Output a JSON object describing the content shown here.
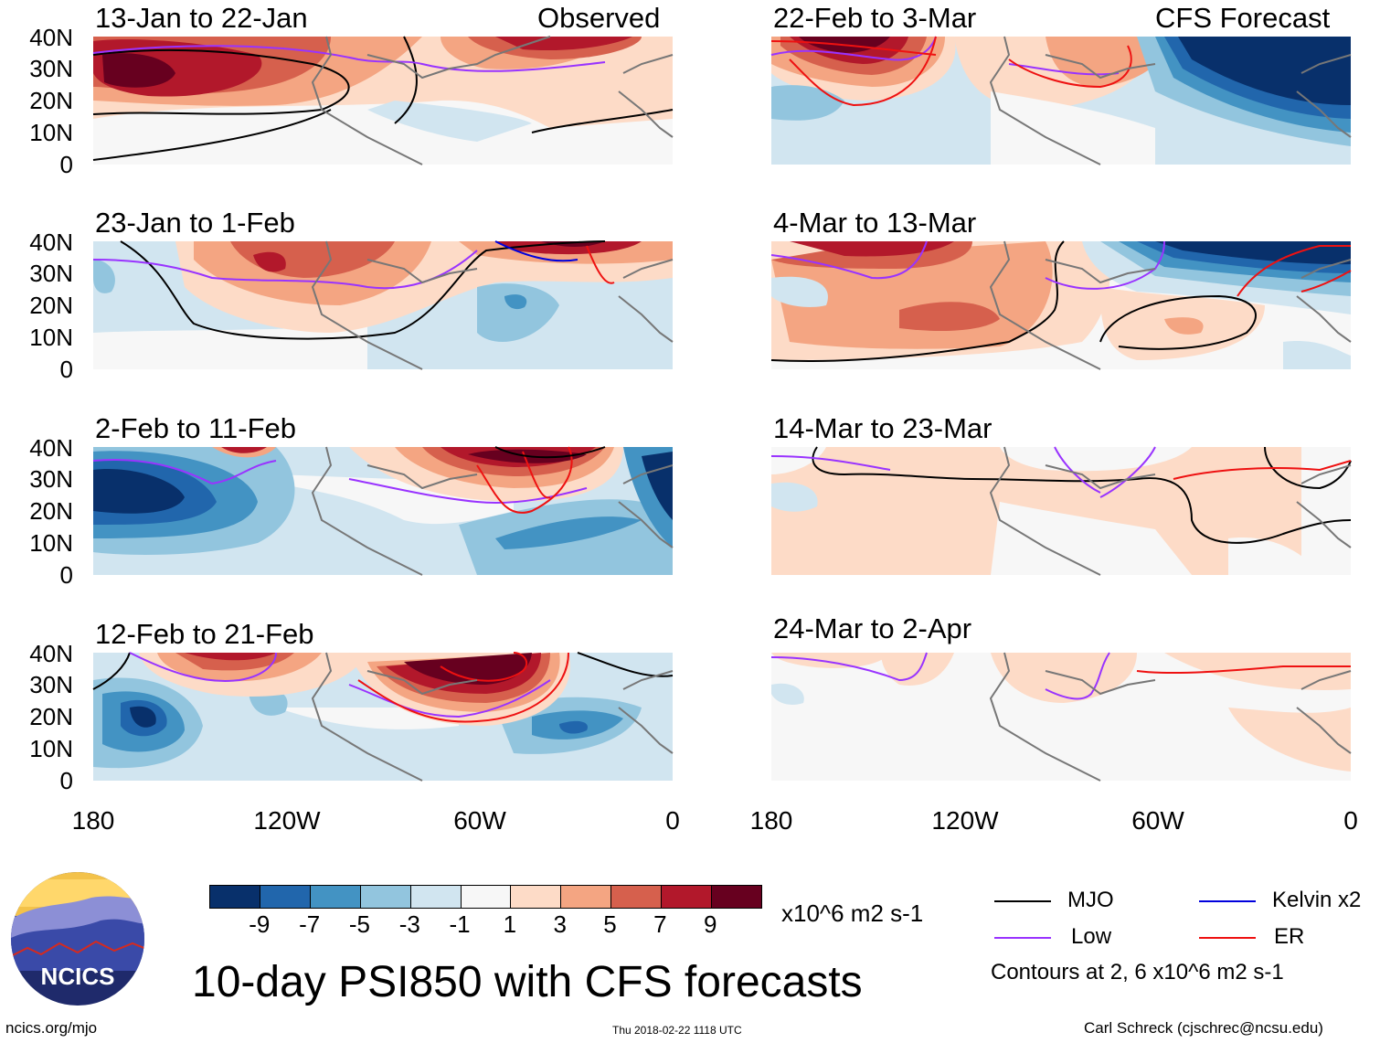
{
  "main_title": "10-day PSI850 with CFS forecasts",
  "left_header": "Observed",
  "right_header": "CFS Forecast",
  "y_ticks": [
    "40N",
    "30N",
    "20N",
    "10N",
    "0"
  ],
  "x_ticks": [
    "180",
    "120W",
    "60W",
    "0"
  ],
  "panels_left": [
    "13-Jan to 22-Jan",
    "23-Jan to 1-Feb",
    "2-Feb to 11-Feb",
    "12-Feb to 21-Feb"
  ],
  "panels_right": [
    "22-Feb to 3-Mar",
    "4-Mar to 13-Mar",
    "14-Mar to 23-Mar",
    "24-Mar to 2-Apr"
  ],
  "colorbar": {
    "labels": [
      "-9",
      "-7",
      "-5",
      "-3",
      "-1",
      "1",
      "3",
      "5",
      "7",
      "9"
    ],
    "units": "x10^6 m2 s-1",
    "colors": [
      "#08306b",
      "#2166ac",
      "#4393c3",
      "#92c5de",
      "#d1e5f0",
      "#f7f7f7",
      "#fddbc7",
      "#f4a582",
      "#d6604d",
      "#b2182b",
      "#67001f"
    ]
  },
  "legend": {
    "mjo": "MJO",
    "kelvin": "Kelvin x2",
    "low": "Low",
    "er": "ER",
    "note": "Contours at 2, 6 x10^6 m2 s-1",
    "colors": {
      "mjo": "#000000",
      "kelvin": "#0000dd",
      "low": "#9933ff",
      "er": "#ee1111"
    }
  },
  "logo_text": "NCICS",
  "footer": {
    "left": "ncics.org/mjo",
    "center": "Thu 2018-02-22 1118 UTC",
    "right": "Carl Schreck (cjschrec@ncsu.edu)"
  }
}
